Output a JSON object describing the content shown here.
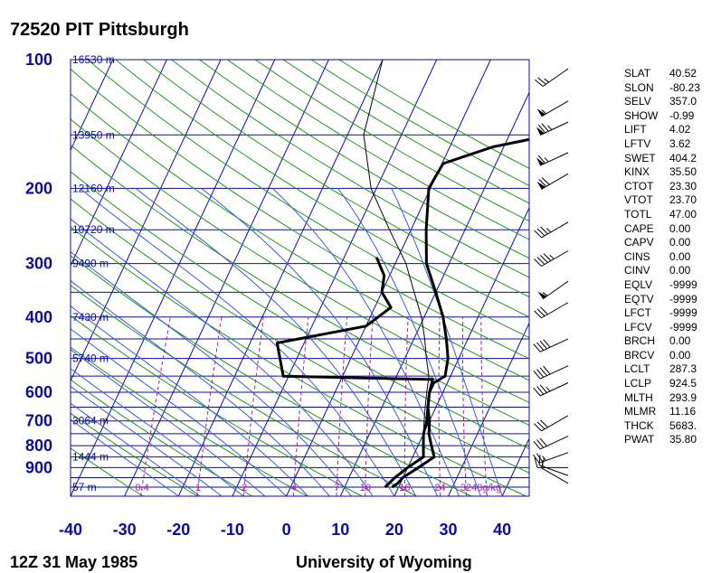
{
  "header": {
    "title": "72520 PIT Pittsburgh"
  },
  "footer": {
    "time": "12Z 31 May 1985",
    "source": "University of Wyoming"
  },
  "chart_data": {
    "type": "line",
    "title": "72520 PIT Pittsburgh",
    "xlabel": "",
    "ylabel": "",
    "xlim": [
      -40,
      45
    ],
    "ylim": [
      1050,
      100
    ],
    "y_scale": "log",
    "x_ticks": [
      -40,
      -30,
      -20,
      -10,
      0,
      10,
      20,
      30,
      40
    ],
    "pressure_ticks": [
      100,
      200,
      300,
      400,
      500,
      600,
      700,
      800,
      900
    ],
    "height_labels": [
      {
        "p": 100,
        "label": "16530 m"
      },
      {
        "p": 150,
        "label": "13950 m"
      },
      {
        "p": 200,
        "label": "12160 m"
      },
      {
        "p": 250,
        "label": "10720 m"
      },
      {
        "p": 300,
        "label": "9490 m"
      },
      {
        "p": 400,
        "label": "7430 m"
      },
      {
        "p": 500,
        "label": "5740 m"
      },
      {
        "p": 700,
        "label": "3064 m"
      },
      {
        "p": 850,
        "label": "1444 m"
      },
      {
        "p": 1000,
        "label": "57 m"
      }
    ],
    "mixing_ratio_labels": [
      "0.4",
      "1",
      "2",
      "4",
      "7",
      "10",
      "16",
      "24",
      "32",
      "40g/kg"
    ],
    "series": [
      {
        "name": "",
        "color": "#000000",
        "points": [
          [
            23.4,
            100
          ],
          [
            17.6,
            120
          ],
          [
            17.8,
            150
          ],
          [
            8,
            160
          ],
          [
            0.2,
            175
          ],
          [
            -0.3,
            200
          ],
          [
            2.8,
            250
          ],
          [
            5.8,
            300
          ],
          [
            10,
            350
          ],
          [
            13.5,
            400
          ],
          [
            16,
            450
          ],
          [
            18,
            500
          ],
          [
            19,
            550
          ],
          [
            17.5,
            570
          ],
          [
            17.5,
            600
          ],
          [
            18.5,
            650
          ],
          [
            20,
            700
          ],
          [
            21,
            750
          ],
          [
            22.5,
            800
          ],
          [
            24,
            850
          ],
          [
            22,
            900
          ],
          [
            20,
            950
          ],
          [
            19.5,
            980
          ],
          [
            18.8,
            1000
          ]
        ]
      },
      {
        "name": "",
        "color": "#000000",
        "points": [
          [
            -4,
            290
          ],
          [
            -1,
            320
          ],
          [
            0,
            350
          ],
          [
            3,
            380
          ],
          [
            0,
            420
          ],
          [
            -15,
            460
          ],
          [
            -11,
            550
          ],
          [
            17,
            560
          ],
          [
            17.5,
            600
          ],
          [
            18.5,
            650
          ],
          [
            19.5,
            700
          ],
          [
            20,
            750
          ],
          [
            21,
            800
          ],
          [
            22,
            850
          ],
          [
            20,
            900
          ],
          [
            18.5,
            950
          ],
          [
            17.5,
            1000
          ]
        ]
      },
      {
        "name": "",
        "color": "#000000",
        "points": [
          [
            -20,
            100
          ],
          [
            -17,
            150
          ],
          [
            -11,
            200
          ],
          [
            -4,
            250
          ],
          [
            2,
            300
          ],
          [
            6,
            350
          ],
          [
            9.5,
            400
          ],
          [
            12,
            450
          ],
          [
            14,
            500
          ],
          [
            16,
            550
          ],
          [
            17,
            600
          ],
          [
            18,
            650
          ],
          [
            19,
            700
          ],
          [
            20,
            750
          ],
          [
            21,
            800
          ],
          [
            22,
            850
          ]
        ]
      }
    ],
    "wind_barbs": [
      {
        "p": 105,
        "dir": 235,
        "kt": 25
      },
      {
        "p": 125,
        "dir": 240,
        "kt": 55
      },
      {
        "p": 140,
        "dir": 245,
        "kt": 75
      },
      {
        "p": 165,
        "dir": 245,
        "kt": 65
      },
      {
        "p": 185,
        "dir": 240,
        "kt": 70
      },
      {
        "p": 240,
        "dir": 240,
        "kt": 35
      },
      {
        "p": 280,
        "dir": 240,
        "kt": 45
      },
      {
        "p": 330,
        "dir": 235,
        "kt": 55
      },
      {
        "p": 370,
        "dir": 240,
        "kt": 30
      },
      {
        "p": 450,
        "dir": 245,
        "kt": 40
      },
      {
        "p": 520,
        "dir": 245,
        "kt": 40
      },
      {
        "p": 570,
        "dir": 245,
        "kt": 35
      },
      {
        "p": 680,
        "dir": 240,
        "kt": 30
      },
      {
        "p": 760,
        "dir": 245,
        "kt": 30
      },
      {
        "p": 830,
        "dir": 250,
        "kt": 25
      },
      {
        "p": 900,
        "dir": 270,
        "kt": 10
      },
      {
        "p": 940,
        "dir": 290,
        "kt": 15
      },
      {
        "p": 980,
        "dir": 300,
        "kt": 10
      }
    ],
    "indices": [
      {
        "key": "SLAT",
        "value": "40.52"
      },
      {
        "key": "SLON",
        "value": "-80.23"
      },
      {
        "key": "SELV",
        "value": "357.0"
      },
      {
        "key": "SHOW",
        "value": "-0.99"
      },
      {
        "key": "LIFT",
        "value": "4.02"
      },
      {
        "key": "LFTV",
        "value": "3.62"
      },
      {
        "key": "SWET",
        "value": "404.2"
      },
      {
        "key": "KINX",
        "value": "35.50"
      },
      {
        "key": "CTOT",
        "value": "23.30"
      },
      {
        "key": "VTOT",
        "value": "23.70"
      },
      {
        "key": "TOTL",
        "value": "47.00"
      },
      {
        "key": "CAPE",
        "value": "0.00"
      },
      {
        "key": "CAPV",
        "value": "0.00"
      },
      {
        "key": "CINS",
        "value": "0.00"
      },
      {
        "key": "CINV",
        "value": "0.00"
      },
      {
        "key": "EQLV",
        "value": "-9999"
      },
      {
        "key": "EQTV",
        "value": "-9999"
      },
      {
        "key": "LFCT",
        "value": "-9999"
      },
      {
        "key": "LFCV",
        "value": "-9999"
      },
      {
        "key": "BRCH",
        "value": "0.00"
      },
      {
        "key": "BRCV",
        "value": "0.00"
      },
      {
        "key": "LCLT",
        "value": "287.3"
      },
      {
        "key": "LCLP",
        "value": "924.5"
      },
      {
        "key": "MLTH",
        "value": "293.9"
      },
      {
        "key": "MLMR",
        "value": "11.16"
      },
      {
        "key": "THCK",
        "value": "5683."
      },
      {
        "key": "PWAT",
        "value": "35.80"
      }
    ],
    "colors": {
      "isobars": "#0b0b9e",
      "isotherms": "#0b0b9e",
      "dry_adiabats": "#1a9a1a",
      "moist_adiabats": "#3a5bd9",
      "mixing_ratio": "#a020a0",
      "sounding": "#000000"
    },
    "grid": true
  }
}
